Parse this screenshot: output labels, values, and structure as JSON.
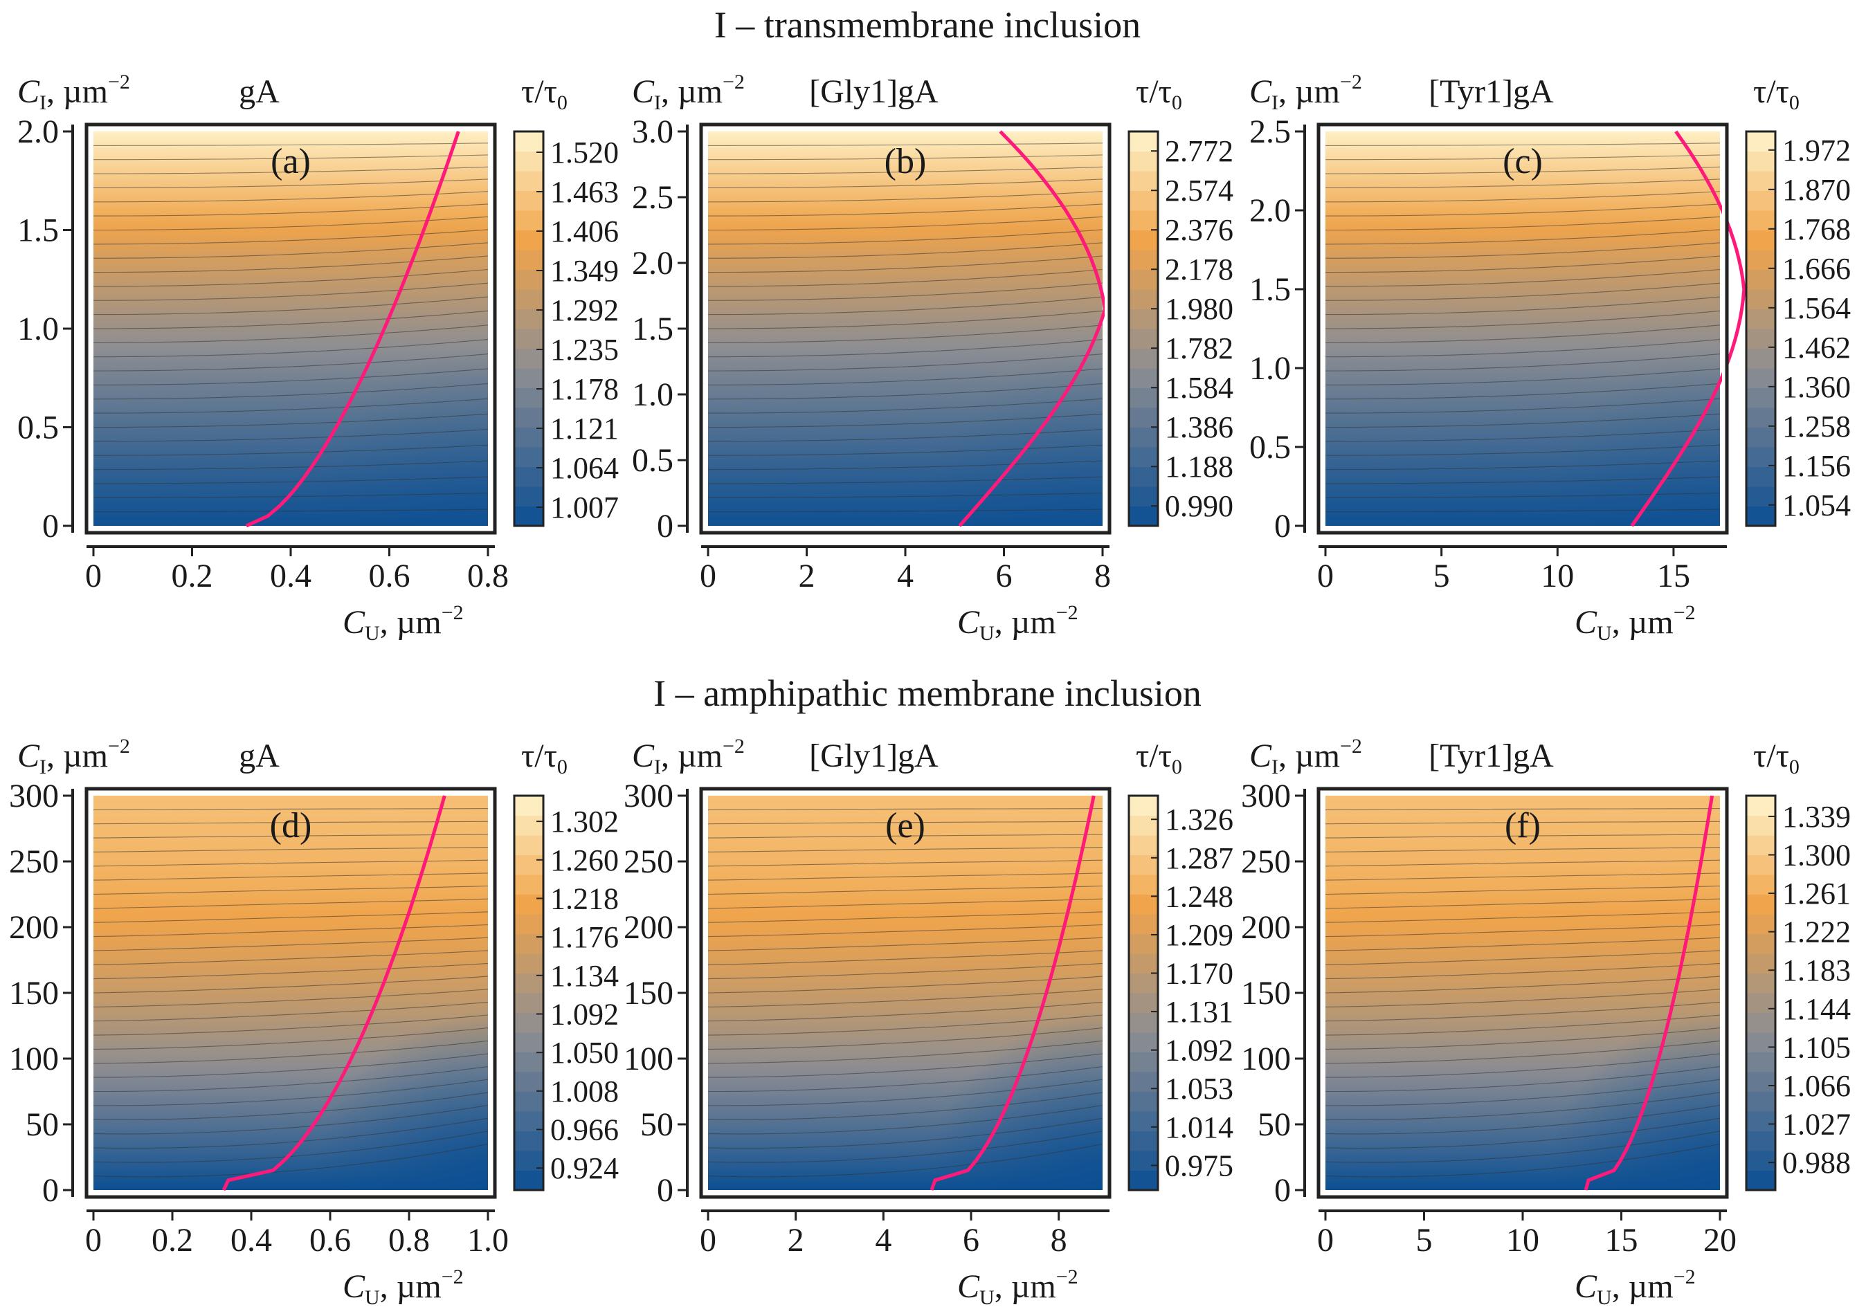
{
  "figure": {
    "rows": [
      {
        "title": "I – transmembrane inclusion"
      },
      {
        "title": "I – amphipathic membrane inclusion"
      }
    ],
    "axis_text": {
      "y_symbol": "C",
      "y_sub": "I",
      "y_unit": ", µm",
      "x_symbol": "C",
      "x_sub": "U",
      "x_unit": ", µm",
      "exponent": "−2",
      "colorbar_title": "τ/τ",
      "colorbar_sub": "0"
    },
    "colors": {
      "low": "#0b4f93",
      "mid": "#8e8e92",
      "orange": "#f0a44a",
      "high": "#fff4cc",
      "curve": "#ff1a7a",
      "frame": "#222222",
      "contour": "#333333"
    }
  },
  "chart_data": [
    {
      "type": "heatmap",
      "panel": "(a)",
      "title": "gA",
      "xlabel": "C_U, µm⁻²",
      "ylabel": "C_I, µm⁻²",
      "xlim": [
        0,
        0.8
      ],
      "ylim": [
        0,
        2.0
      ],
      "x_ticks": [
        "0",
        "0.2",
        "0.4",
        "0.6",
        "0.8"
      ],
      "x_tick_values": [
        0,
        0.2,
        0.4,
        0.6,
        0.8
      ],
      "y_ticks": [
        "0",
        "0.5",
        "1.0",
        "1.5",
        "2.0"
      ],
      "y_tick_values": [
        0,
        0.5,
        1.0,
        1.5,
        2.0
      ],
      "colorbar_ticks": [
        "1.007",
        "1.064",
        "1.121",
        "1.178",
        "1.235",
        "1.292",
        "1.349",
        "1.406",
        "1.463",
        "1.520"
      ],
      "value_range": [
        0.98,
        1.55
      ],
      "curve_x_at_ymin": 0.31,
      "curve_x_at_ymax": 0.74
    },
    {
      "type": "heatmap",
      "panel": "(b)",
      "title": "[Gly1]gA",
      "xlabel": "C_U, µm⁻²",
      "ylabel": "C_I, µm⁻²",
      "xlim": [
        0,
        8
      ],
      "ylim": [
        0,
        3.0
      ],
      "x_ticks": [
        "0",
        "2",
        "4",
        "6",
        "8"
      ],
      "x_tick_values": [
        0,
        2,
        4,
        6,
        8
      ],
      "y_ticks": [
        "0",
        "0.5",
        "1.0",
        "1.5",
        "2.0",
        "2.5",
        "3.0"
      ],
      "y_tick_values": [
        0,
        0.5,
        1.0,
        1.5,
        2.0,
        2.5,
        3.0
      ],
      "colorbar_ticks": [
        "0.990",
        "1.188",
        "1.386",
        "1.584",
        "1.782",
        "1.980",
        "2.178",
        "2.376",
        "2.574",
        "2.772"
      ],
      "value_range": [
        0.89,
        2.87
      ],
      "curve_x_at_ymin": 5.1,
      "curve_x_at_ymax": 6.1
    },
    {
      "type": "heatmap",
      "panel": "(c)",
      "title": "[Tyr1]gA",
      "xlabel": "C_U, µm⁻²",
      "ylabel": "C_I, µm⁻²",
      "xlim": [
        0,
        17
      ],
      "ylim": [
        0,
        2.5
      ],
      "x_ticks": [
        "0",
        "5",
        "10",
        "15"
      ],
      "x_tick_values": [
        0,
        5,
        10,
        15
      ],
      "y_ticks": [
        "0",
        "0.5",
        "1.0",
        "1.5",
        "2.0",
        "2.5"
      ],
      "y_tick_values": [
        0,
        0.5,
        1.0,
        1.5,
        2.0,
        2.5
      ],
      "colorbar_ticks": [
        "1.054",
        "1.156",
        "1.258",
        "1.360",
        "1.462",
        "1.564",
        "1.666",
        "1.768",
        "1.870",
        "1.972"
      ],
      "value_range": [
        1.0,
        2.02
      ],
      "curve_x_at_ymin": 13.2,
      "curve_x_at_ymax": 15.2
    },
    {
      "type": "heatmap",
      "panel": "(d)",
      "title": "gA",
      "xlabel": "C_U, µm⁻²",
      "ylabel": "C_I, µm⁻²",
      "xlim": [
        0,
        1.0
      ],
      "ylim": [
        0,
        300
      ],
      "x_ticks": [
        "0",
        "0.2",
        "0.4",
        "0.6",
        "0.8",
        "1.0"
      ],
      "x_tick_values": [
        0,
        0.2,
        0.4,
        0.6,
        0.8,
        1.0
      ],
      "y_ticks": [
        "0",
        "50",
        "100",
        "150",
        "200",
        "250",
        "300"
      ],
      "y_tick_values": [
        0,
        50,
        100,
        150,
        200,
        250,
        300
      ],
      "colorbar_ticks": [
        "0.924",
        "0.966",
        "1.008",
        "1.050",
        "1.092",
        "1.134",
        "1.176",
        "1.218",
        "1.260",
        "1.302"
      ],
      "value_range": [
        0.9,
        1.33
      ],
      "curve_x_at_ymin": 0.33,
      "curve_x_at_ymax": 0.89
    },
    {
      "type": "heatmap",
      "panel": "(e)",
      "title": "[Gly1]gA",
      "xlabel": "C_U, µm⁻²",
      "ylabel": "C_I, µm⁻²",
      "xlim": [
        0,
        9
      ],
      "ylim": [
        0,
        300
      ],
      "x_ticks": [
        "0",
        "2",
        "4",
        "6",
        "8"
      ],
      "x_tick_values": [
        0,
        2,
        4,
        6,
        8
      ],
      "y_ticks": [
        "0",
        "50",
        "100",
        "150",
        "200",
        "250",
        "300"
      ],
      "y_tick_values": [
        0,
        50,
        100,
        150,
        200,
        250,
        300
      ],
      "colorbar_ticks": [
        "0.975",
        "1.014",
        "1.053",
        "1.092",
        "1.131",
        "1.170",
        "1.209",
        "1.248",
        "1.287",
        "1.326"
      ],
      "value_range": [
        0.95,
        1.35
      ],
      "curve_x_at_ymin": 5.1,
      "curve_x_at_ymax": 8.8
    },
    {
      "type": "heatmap",
      "panel": "(f)",
      "title": "[Tyr1]gA",
      "xlabel": "C_U, µm⁻²",
      "ylabel": "C_I, µm⁻²",
      "xlim": [
        0,
        20
      ],
      "ylim": [
        0,
        300
      ],
      "x_ticks": [
        "0",
        "5",
        "10",
        "15",
        "20"
      ],
      "x_tick_values": [
        0,
        5,
        10,
        15,
        20
      ],
      "y_ticks": [
        "0",
        "50",
        "100",
        "150",
        "200",
        "250",
        "300"
      ],
      "y_tick_values": [
        0,
        50,
        100,
        150,
        200,
        250,
        300
      ],
      "colorbar_ticks": [
        "0.988",
        "1.027",
        "1.066",
        "1.105",
        "1.144",
        "1.183",
        "1.222",
        "1.261",
        "1.300",
        "1.339"
      ],
      "value_range": [
        0.96,
        1.36
      ],
      "curve_x_at_ymin": 13.2,
      "curve_x_at_ymax": 19.6
    }
  ]
}
